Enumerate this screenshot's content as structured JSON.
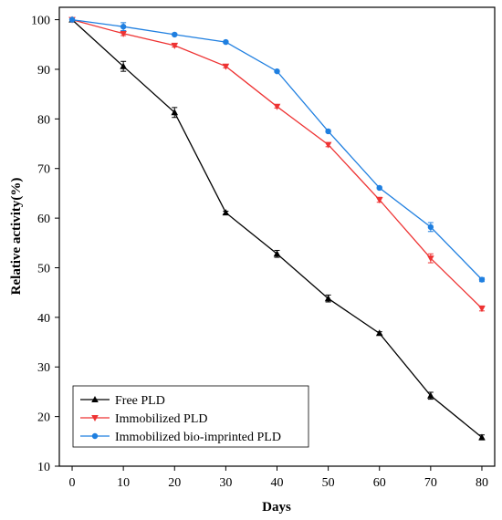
{
  "chart_data": {
    "type": "line",
    "title": "",
    "xlabel": "Days",
    "ylabel": "Relative activity(%)",
    "xlim": [
      -2.5,
      82.5
    ],
    "ylim": [
      10,
      102.5
    ],
    "xticks": [
      0,
      10,
      20,
      30,
      40,
      50,
      60,
      70,
      80
    ],
    "yticks": [
      10,
      20,
      30,
      40,
      50,
      60,
      70,
      80,
      90,
      100
    ],
    "grid": false,
    "legend_position": "bottom-left",
    "x": [
      0,
      10,
      20,
      30,
      40,
      50,
      60,
      70,
      80
    ],
    "series": [
      {
        "name": "Free PLD",
        "color": "#000000",
        "marker": "triangle-up",
        "values": [
          100,
          90.6,
          81.3,
          61.1,
          52.8,
          43.8,
          36.8,
          24.2,
          15.8
        ],
        "errors": [
          0,
          1.0,
          1.0,
          0.3,
          0.7,
          0.7,
          0.3,
          0.7,
          0.5
        ]
      },
      {
        "name": "Immobilized PLD",
        "color": "#ee3333",
        "marker": "triangle-down",
        "values": [
          100,
          97.2,
          94.8,
          90.6,
          82.5,
          74.8,
          63.7,
          51.9,
          41.8
        ],
        "errors": [
          0,
          0.4,
          0.3,
          0.3,
          0.3,
          0.4,
          0.5,
          0.9,
          0.5
        ]
      },
      {
        "name": "Immobilized bio-imprinted PLD",
        "color": "#1f7fe0",
        "marker": "circle",
        "values": [
          100,
          98.6,
          97.0,
          95.5,
          89.6,
          77.5,
          66.1,
          58.2,
          47.6
        ],
        "errors": [
          0,
          0.8,
          0.2,
          0.2,
          0.2,
          0.2,
          0.2,
          0.9,
          0.4
        ]
      }
    ]
  }
}
